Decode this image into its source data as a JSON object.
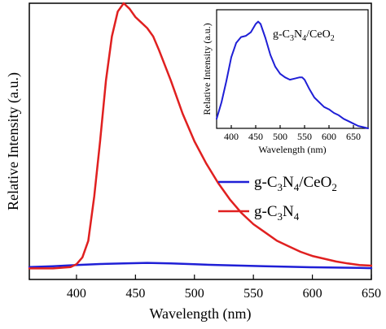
{
  "chart_data": [
    {
      "type": "line",
      "xlabel": "Wavelength (nm)",
      "ylabel": "Relative Intensity (a.u.)",
      "xlim": [
        360,
        650
      ],
      "ylim": [
        0,
        1.0
      ],
      "xticks": [
        400,
        450,
        500,
        550,
        600,
        650
      ],
      "yticks_shown": false,
      "grid": false,
      "legend": {
        "placement": "right-middle"
      },
      "series": [
        {
          "name": "g-C3N4/CeO2",
          "color": "#1f1fd6",
          "x": [
            360,
            380,
            400,
            420,
            440,
            460,
            480,
            500,
            520,
            540,
            560,
            580,
            600,
            620,
            640,
            650
          ],
          "y": [
            0.045,
            0.048,
            0.052,
            0.056,
            0.058,
            0.06,
            0.058,
            0.055,
            0.052,
            0.05,
            0.048,
            0.046,
            0.044,
            0.043,
            0.042,
            0.041
          ]
        },
        {
          "name": "g-C3N4",
          "color": "#e02020",
          "x": [
            360,
            380,
            395,
            400,
            405,
            410,
            415,
            420,
            425,
            430,
            435,
            440,
            445,
            450,
            455,
            460,
            465,
            470,
            480,
            490,
            500,
            510,
            520,
            530,
            540,
            550,
            560,
            570,
            580,
            590,
            600,
            610,
            620,
            630,
            640,
            650
          ],
          "y": [
            0.04,
            0.04,
            0.045,
            0.055,
            0.08,
            0.14,
            0.3,
            0.5,
            0.72,
            0.88,
            0.97,
            1.0,
            0.98,
            0.95,
            0.93,
            0.91,
            0.88,
            0.83,
            0.72,
            0.6,
            0.5,
            0.42,
            0.35,
            0.29,
            0.24,
            0.2,
            0.17,
            0.14,
            0.12,
            0.1,
            0.085,
            0.075,
            0.065,
            0.058,
            0.052,
            0.05
          ]
        }
      ]
    },
    {
      "type": "line",
      "xlabel": "Wavelength (nm)",
      "ylabel": "Relative Intensity (a.u.)",
      "xlim": [
        370,
        680
      ],
      "ylim": [
        0,
        1.0
      ],
      "xticks": [
        400,
        450,
        500,
        550,
        600,
        650
      ],
      "yticks_shown": false,
      "grid": false,
      "series": [
        {
          "color": "#1f1fd6",
          "x": [
            370,
            380,
            390,
            400,
            410,
            420,
            430,
            440,
            450,
            455,
            460,
            470,
            480,
            490,
            500,
            510,
            520,
            530,
            540,
            545,
            550,
            560,
            570,
            580,
            590,
            600,
            610,
            620,
            630,
            640,
            650,
            660,
            670,
            680
          ],
          "y": [
            0.08,
            0.22,
            0.4,
            0.6,
            0.72,
            0.77,
            0.78,
            0.81,
            0.88,
            0.9,
            0.88,
            0.76,
            0.62,
            0.52,
            0.46,
            0.43,
            0.41,
            0.42,
            0.43,
            0.43,
            0.41,
            0.33,
            0.26,
            0.22,
            0.18,
            0.16,
            0.13,
            0.11,
            0.08,
            0.06,
            0.04,
            0.02,
            0.01,
            0.0
          ]
        }
      ]
    }
  ],
  "legend_labels": [
    {
      "base": "g-C",
      "sub1": "3",
      "mid": "N",
      "sub2": "4",
      "tail": "/CeO",
      "sub3": "2"
    },
    {
      "base": "g-C",
      "sub1": "3",
      "mid": "N",
      "sub2": "4",
      "tail": "",
      "sub3": ""
    }
  ],
  "inset_label": {
    "base": "g-C",
    "sub1": "3",
    "mid": "N",
    "sub2": "4",
    "tail": "/CeO",
    "sub3": "2"
  }
}
